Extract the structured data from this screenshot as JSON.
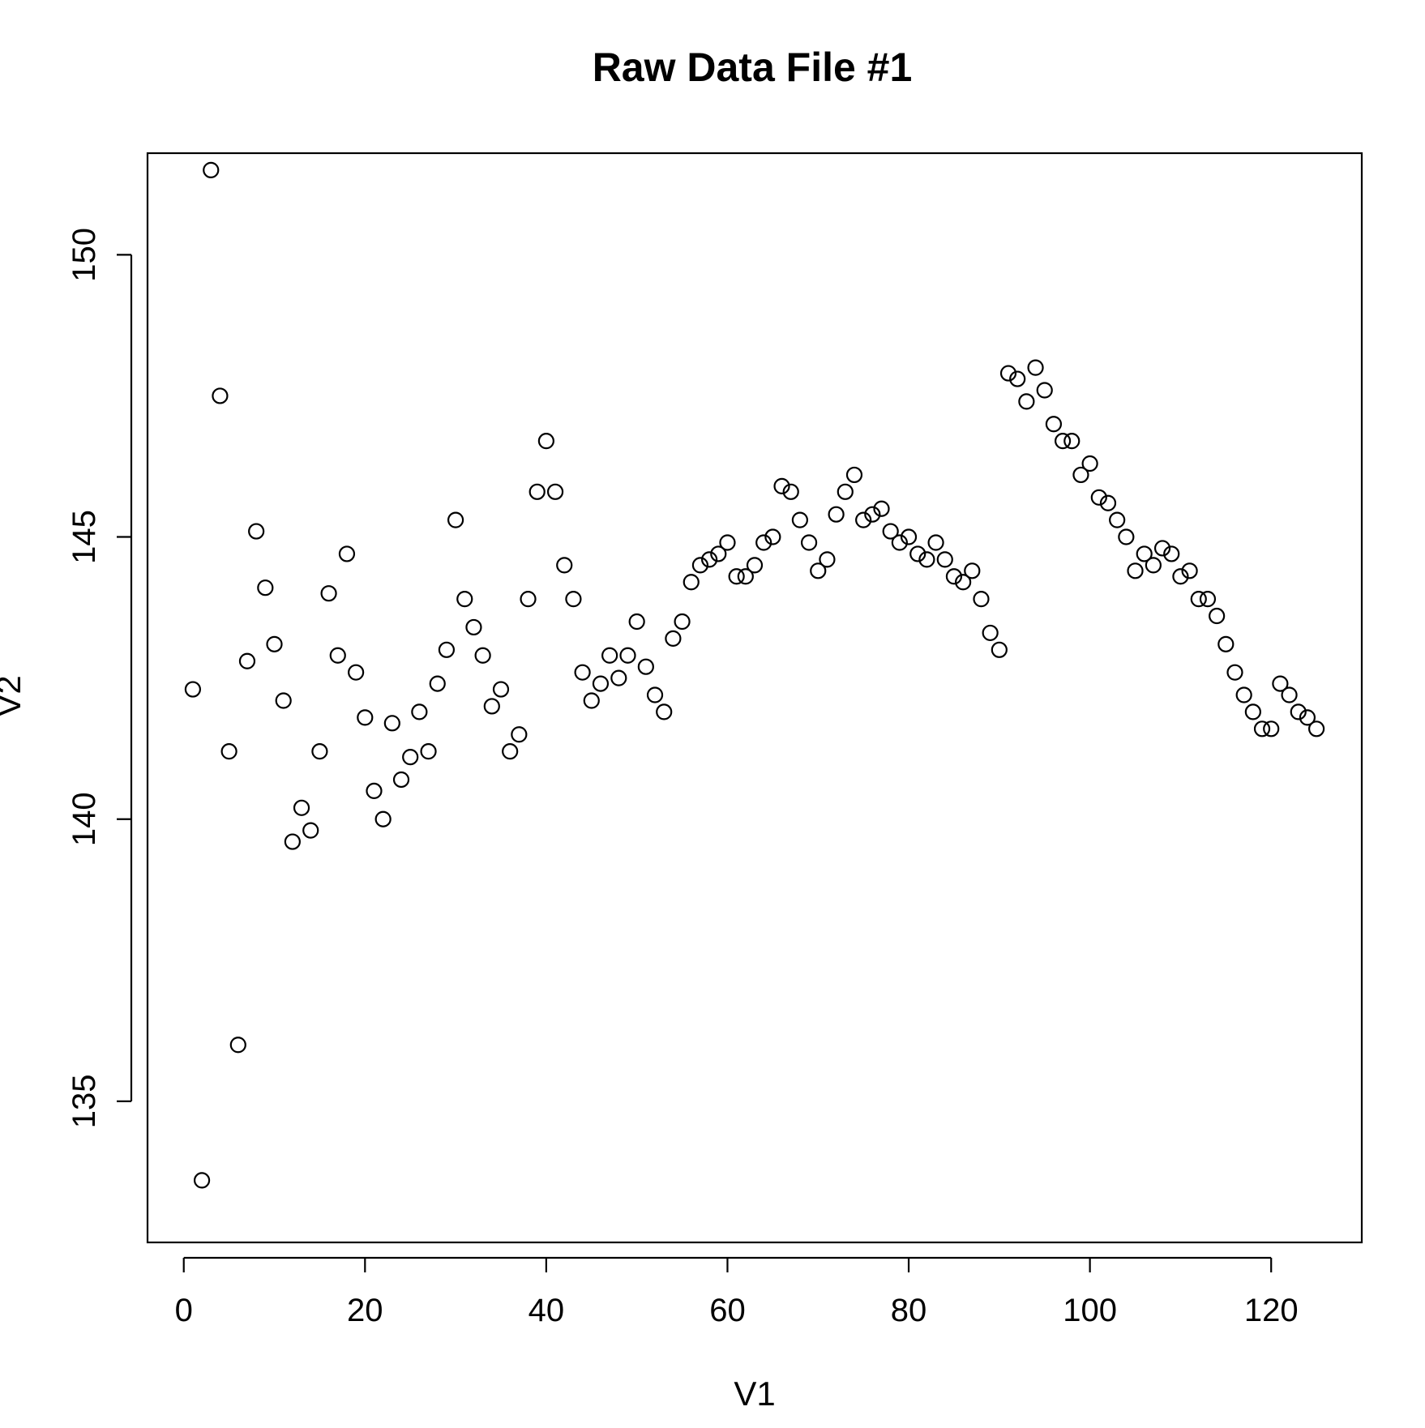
{
  "chart_data": {
    "type": "scatter",
    "title": "Raw Data File #1",
    "xlabel": "V1",
    "ylabel": "V2",
    "xlim": [
      -4,
      130
    ],
    "ylim": [
      132.5,
      151.8
    ],
    "x_ticks": [
      0,
      20,
      40,
      60,
      80,
      100,
      120
    ],
    "y_ticks": [
      135,
      140,
      145,
      150
    ],
    "x_tick_labels": [
      "0",
      "20",
      "40",
      "60",
      "80",
      "100",
      "120"
    ],
    "y_tick_labels": [
      "135",
      "140",
      "145",
      "150"
    ],
    "grid": false,
    "marker": "open-circle",
    "x": [
      1,
      2,
      3,
      4,
      5,
      6,
      7,
      8,
      9,
      10,
      11,
      12,
      13,
      14,
      15,
      16,
      17,
      18,
      19,
      20,
      21,
      22,
      23,
      24,
      25,
      26,
      27,
      28,
      29,
      30,
      31,
      32,
      33,
      34,
      35,
      36,
      37,
      38,
      39,
      40,
      41,
      42,
      43,
      44,
      45,
      46,
      47,
      48,
      49,
      50,
      51,
      52,
      53,
      54,
      55,
      56,
      57,
      58,
      59,
      60,
      61,
      62,
      63,
      64,
      65,
      66,
      67,
      68,
      69,
      70,
      71,
      72,
      73,
      74,
      75,
      76,
      77,
      78,
      79,
      80,
      81,
      82,
      83,
      84,
      85,
      86,
      87,
      88,
      89,
      90,
      91,
      92,
      93,
      94,
      95,
      96,
      97,
      98,
      99,
      100,
      101,
      102,
      103,
      104,
      105,
      106,
      107,
      108,
      109,
      110,
      111,
      112,
      113,
      114,
      115,
      116,
      117,
      118,
      119,
      120,
      121,
      122,
      123,
      124,
      125
    ],
    "y": [
      142.3,
      133.6,
      151.5,
      147.5,
      141.2,
      136.0,
      142.8,
      145.1,
      144.1,
      143.1,
      142.1,
      139.6,
      140.2,
      139.8,
      141.2,
      144.0,
      142.9,
      144.7,
      142.6,
      141.8,
      140.5,
      140.0,
      141.7,
      140.7,
      141.1,
      141.9,
      141.2,
      142.4,
      143.0,
      145.3,
      143.9,
      143.4,
      142.9,
      142.0,
      142.3,
      141.2,
      141.5,
      143.9,
      145.8,
      146.7,
      145.8,
      144.5,
      143.9,
      142.6,
      142.1,
      142.4,
      142.9,
      142.5,
      142.9,
      143.5,
      142.7,
      142.2,
      141.9,
      143.2,
      143.5,
      144.2,
      144.5,
      144.6,
      144.7,
      144.9,
      144.3,
      144.3,
      144.5,
      144.9,
      145.0,
      145.9,
      145.8,
      145.3,
      144.9,
      144.4,
      144.6,
      145.4,
      145.8,
      146.1,
      145.3,
      145.4,
      145.5,
      145.1,
      144.9,
      145.0,
      144.7,
      144.6,
      144.9,
      144.6,
      144.3,
      144.2,
      144.4,
      143.9,
      143.3,
      143.0,
      147.9,
      147.8,
      147.4,
      148.0,
      147.6,
      147.0,
      146.7,
      146.7,
      146.1,
      146.3,
      145.7,
      145.6,
      145.3,
      145.0,
      144.4,
      144.7,
      144.5,
      144.8,
      144.7,
      144.3,
      144.4,
      143.9,
      143.9,
      143.6,
      143.1,
      142.6,
      142.2,
      141.9,
      141.6,
      141.6,
      142.4,
      142.2,
      141.9,
      141.8,
      141.6
    ]
  }
}
